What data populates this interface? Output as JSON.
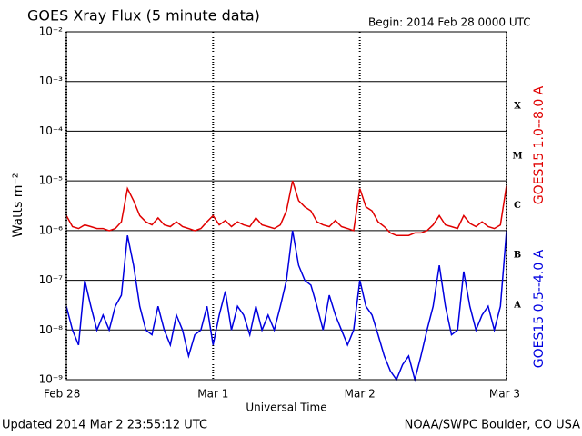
{
  "chart_data": {
    "type": "line",
    "title": "GOES Xray Flux (5 minute data)",
    "subtitle": "Begin:  2014 Feb 28 0000 UTC",
    "ylabel": "Watts m⁻²",
    "xlabel": "Universal Time",
    "footer_left": "Updated 2014 Mar  2 23:55:12 UTC",
    "footer_right": "NOAA/SWPC Boulder, CO USA",
    "flare_classes": [
      "X",
      "M",
      "C",
      "B",
      "A"
    ],
    "ylog": true,
    "grid": true,
    "xlim": [
      0,
      72
    ],
    "xticks": [
      {
        "value": 0,
        "label": "Feb 28"
      },
      {
        "value": 24,
        "label": "Mar 1"
      },
      {
        "value": 48,
        "label": "Mar 2"
      },
      {
        "value": 72,
        "label": "Mar 3"
      }
    ],
    "ylim": [
      1e-09,
      0.01
    ],
    "yticks": [
      {
        "value": 1e-09,
        "label": "10⁻⁹"
      },
      {
        "value": 1e-08,
        "label": "10⁻⁸"
      },
      {
        "value": 1e-07,
        "label": "10⁻⁷"
      },
      {
        "value": 1e-06,
        "label": "10⁻⁶"
      },
      {
        "value": 1e-05,
        "label": "10⁻⁵"
      },
      {
        "value": 0.0001,
        "label": "10⁻⁴"
      },
      {
        "value": 0.001,
        "label": "10⁻³"
      },
      {
        "value": 0.01,
        "label": "10⁻²"
      }
    ],
    "x": [
      0,
      1,
      2,
      3,
      4,
      5,
      6,
      7,
      8,
      9,
      10,
      11,
      12,
      13,
      14,
      15,
      16,
      17,
      18,
      19,
      20,
      21,
      22,
      23,
      24,
      25,
      26,
      27,
      28,
      29,
      30,
      31,
      32,
      33,
      34,
      35,
      36,
      37,
      38,
      39,
      40,
      41,
      42,
      43,
      44,
      45,
      46,
      47,
      48,
      49,
      50,
      51,
      52,
      53,
      54,
      55,
      56,
      57,
      58,
      59,
      60,
      61,
      62,
      63,
      64,
      65,
      66,
      67,
      68,
      69,
      70,
      71,
      72
    ],
    "series": [
      {
        "name": "GOES15 1.0--8.0 A",
        "color": "#e00000",
        "values": [
          2e-06,
          1.2e-06,
          1.1e-06,
          1.3e-06,
          1.2e-06,
          1.1e-06,
          1.1e-06,
          1e-06,
          1.1e-06,
          1.5e-06,
          7e-06,
          4e-06,
          2e-06,
          1.5e-06,
          1.3e-06,
          1.8e-06,
          1.3e-06,
          1.2e-06,
          1.5e-06,
          1.2e-06,
          1.1e-06,
          1e-06,
          1.1e-06,
          1.5e-06,
          2e-06,
          1.3e-06,
          1.6e-06,
          1.2e-06,
          1.5e-06,
          1.3e-06,
          1.2e-06,
          1.8e-06,
          1.3e-06,
          1.2e-06,
          1.1e-06,
          1.3e-06,
          2.5e-06,
          1e-05,
          4e-06,
          3e-06,
          2.5e-06,
          1.5e-06,
          1.3e-06,
          1.2e-06,
          1.6e-06,
          1.2e-06,
          1.1e-06,
          1e-06,
          7e-06,
          3e-06,
          2.5e-06,
          1.5e-06,
          1.2e-06,
          9e-07,
          8e-07,
          8e-07,
          8e-07,
          9e-07,
          9e-07,
          1e-06,
          1.3e-06,
          2e-06,
          1.3e-06,
          1.2e-06,
          1.1e-06,
          2e-06,
          1.4e-06,
          1.2e-06,
          1.5e-06,
          1.2e-06,
          1.1e-06,
          1.3e-06,
          8e-06
        ]
      },
      {
        "name": "GOES15 0.5--4.0 A",
        "color": "#0000e0",
        "values": [
          3e-08,
          1e-08,
          5e-09,
          1e-07,
          3e-08,
          1e-08,
          2e-08,
          1e-08,
          3e-08,
          5e-08,
          8e-07,
          2e-07,
          3e-08,
          1e-08,
          8e-09,
          3e-08,
          1e-08,
          5e-09,
          2e-08,
          1e-08,
          3e-09,
          8e-09,
          1e-08,
          3e-08,
          5e-09,
          2e-08,
          6e-08,
          1e-08,
          3e-08,
          2e-08,
          8e-09,
          3e-08,
          1e-08,
          2e-08,
          1e-08,
          3e-08,
          1e-07,
          1e-06,
          2e-07,
          1e-07,
          8e-08,
          3e-08,
          1e-08,
          5e-08,
          2e-08,
          1e-08,
          5e-09,
          1e-08,
          1e-07,
          3e-08,
          2e-08,
          8e-09,
          3e-09,
          1.5e-09,
          1e-09,
          2e-09,
          3e-09,
          1e-09,
          3e-09,
          1e-08,
          3e-08,
          2e-07,
          3e-08,
          8e-09,
          1e-08,
          1.5e-07,
          3e-08,
          1e-08,
          2e-08,
          3e-08,
          1e-08,
          3e-08,
          1e-06
        ]
      }
    ]
  }
}
